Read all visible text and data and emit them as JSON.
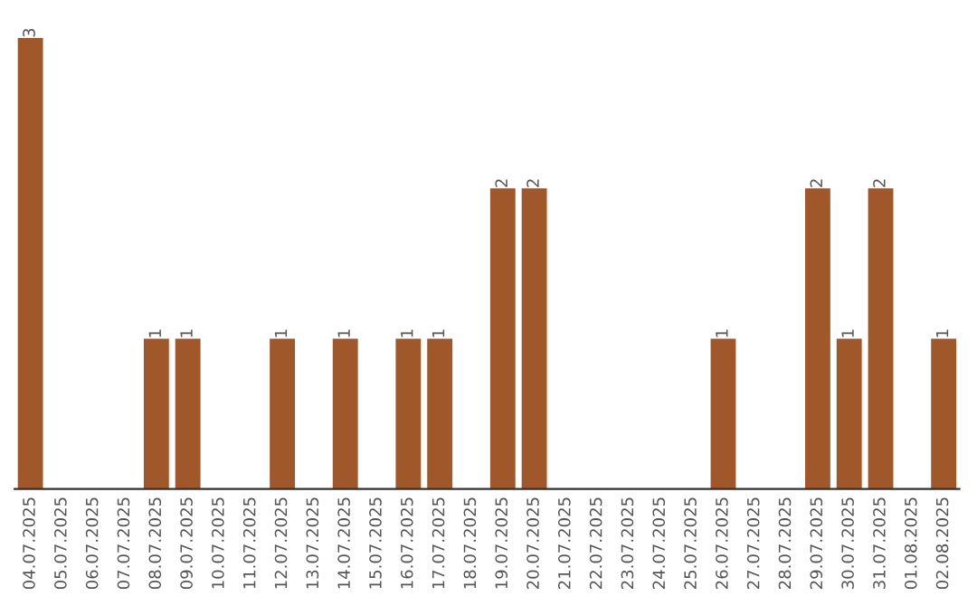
{
  "chart_data": {
    "type": "bar",
    "categories": [
      "04.07.2025",
      "05.07.2025",
      "06.07.2025",
      "07.07.2025",
      "08.07.2025",
      "09.07.2025",
      "10.07.2025",
      "11.07.2025",
      "12.07.2025",
      "13.07.2025",
      "14.07.2025",
      "15.07.2025",
      "16.07.2025",
      "17.07.2025",
      "18.07.2025",
      "19.07.2025",
      "20.07.2025",
      "21.07.2025",
      "22.07.2025",
      "23.07.2025",
      "24.07.2025",
      "25.07.2025",
      "26.07.2025",
      "27.07.2025",
      "28.07.2025",
      "29.07.2025",
      "30.07.2025",
      "31.07.2025",
      "01.08.2025",
      "02.08.2025"
    ],
    "values": [
      3,
      0,
      0,
      0,
      1,
      1,
      0,
      0,
      1,
      0,
      1,
      0,
      1,
      1,
      0,
      2,
      2,
      0,
      0,
      0,
      0,
      0,
      1,
      0,
      0,
      2,
      1,
      2,
      0,
      1
    ],
    "color": "#a0582a",
    "value_labels": [
      "3",
      null,
      null,
      null,
      "1",
      "1",
      null,
      null,
      "1",
      null,
      "1",
      null,
      "1",
      "1",
      null,
      "2",
      "2",
      null,
      null,
      null,
      null,
      null,
      "1",
      null,
      null,
      "2",
      "1",
      "2",
      null,
      "1"
    ],
    "grid": false,
    "legend": false
  }
}
